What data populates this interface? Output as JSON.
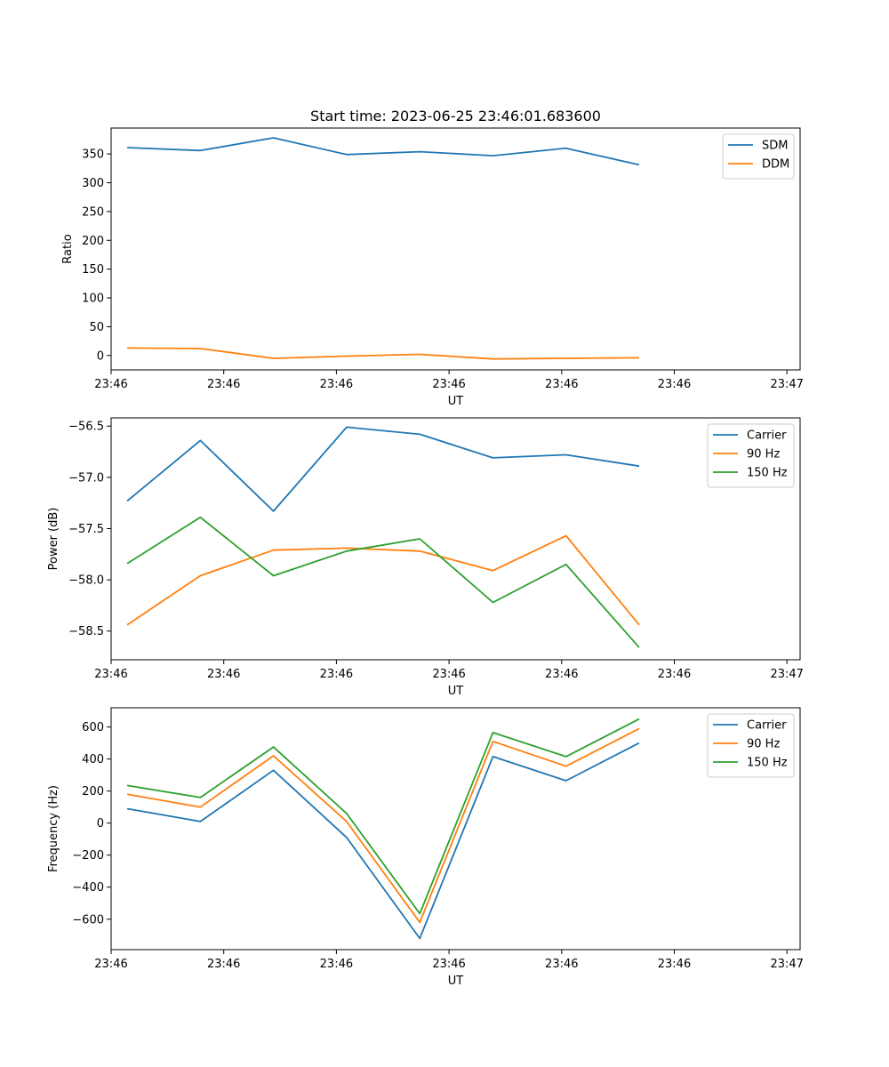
{
  "figure_title": "Start time: 2023-06-25 23:46:01.683600",
  "chart_data": [
    {
      "type": "line",
      "title": "Start time: 2023-06-25 23:46:01.683600",
      "xlabel": "UT",
      "ylabel": "Ratio",
      "x_tick_labels": [
        "23:46",
        "23:46",
        "23:46",
        "23:46",
        "23:46",
        "23:46",
        "23:47"
      ],
      "x": [
        1,
        2,
        3,
        4,
        5,
        6,
        7,
        8
      ],
      "xlim": [
        0.78,
        10.2
      ],
      "x_ticks": [
        0.78,
        2.32,
        3.86,
        5.4,
        6.94,
        8.48,
        10.02
      ],
      "ylim": [
        -25,
        395
      ],
      "y_ticks": [
        0,
        50,
        100,
        150,
        200,
        250,
        300,
        350
      ],
      "legend_position": "upper right",
      "series": [
        {
          "name": "SDM",
          "color": "#1f77b4",
          "values": [
            361,
            356,
            378,
            349,
            354,
            347,
            360,
            331
          ]
        },
        {
          "name": "DDM",
          "color": "#ff7f0e",
          "values": [
            13,
            12,
            -5,
            -1,
            2,
            -6,
            -5,
            -4
          ]
        }
      ]
    },
    {
      "type": "line",
      "xlabel": "UT",
      "ylabel": "Power (dB)",
      "x_tick_labels": [
        "23:46",
        "23:46",
        "23:46",
        "23:46",
        "23:46",
        "23:46",
        "23:47"
      ],
      "x": [
        1,
        2,
        3,
        4,
        5,
        6,
        7,
        8
      ],
      "xlim": [
        0.78,
        10.2
      ],
      "x_ticks": [
        0.78,
        2.32,
        3.86,
        5.4,
        6.94,
        8.48,
        10.02
      ],
      "ylim": [
        -58.78,
        -56.42
      ],
      "y_ticks": [
        -58.5,
        -58.0,
        -57.5,
        -57.0,
        -56.5
      ],
      "y_tick_labels": [
        "−58.5",
        "−58.0",
        "−57.5",
        "−57.0",
        "−56.5"
      ],
      "legend_position": "upper right",
      "series": [
        {
          "name": "Carrier",
          "color": "#1f77b4",
          "values": [
            -57.23,
            -56.64,
            -57.33,
            -56.51,
            -56.58,
            -56.81,
            -56.78,
            -56.89
          ]
        },
        {
          "name": "90 Hz",
          "color": "#ff7f0e",
          "values": [
            -58.44,
            -57.96,
            -57.71,
            -57.69,
            -57.72,
            -57.91,
            -57.57,
            -58.44
          ]
        },
        {
          "name": "150 Hz",
          "color": "#2ca02c",
          "values": [
            -57.84,
            -57.39,
            -57.96,
            -57.72,
            -57.6,
            -58.22,
            -57.85,
            -58.66
          ]
        }
      ]
    },
    {
      "type": "line",
      "xlabel": "UT",
      "ylabel": "Frequency (Hz)",
      "x_tick_labels": [
        "23:46",
        "23:46",
        "23:46",
        "23:46",
        "23:46",
        "23:46",
        "23:47"
      ],
      "x": [
        1,
        2,
        3,
        4,
        5,
        6,
        7,
        8
      ],
      "xlim": [
        0.78,
        10.2
      ],
      "x_ticks": [
        0.78,
        2.32,
        3.86,
        5.4,
        6.94,
        8.48,
        10.02
      ],
      "ylim": [
        -790,
        720
      ],
      "y_ticks": [
        -600,
        -400,
        -200,
        0,
        200,
        400,
        600
      ],
      "y_tick_labels": [
        "−600",
        "−400",
        "−200",
        "0",
        "200",
        "400",
        "600"
      ],
      "legend_position": "upper right",
      "series": [
        {
          "name": "Carrier",
          "color": "#1f77b4",
          "values": [
            90,
            10,
            330,
            -90,
            -720,
            415,
            265,
            500
          ]
        },
        {
          "name": "90 Hz",
          "color": "#ff7f0e",
          "values": [
            180,
            100,
            420,
            10,
            -620,
            510,
            355,
            590
          ]
        },
        {
          "name": "150 Hz",
          "color": "#2ca02c",
          "values": [
            235,
            160,
            475,
            60,
            -565,
            565,
            415,
            650
          ]
        }
      ]
    }
  ]
}
